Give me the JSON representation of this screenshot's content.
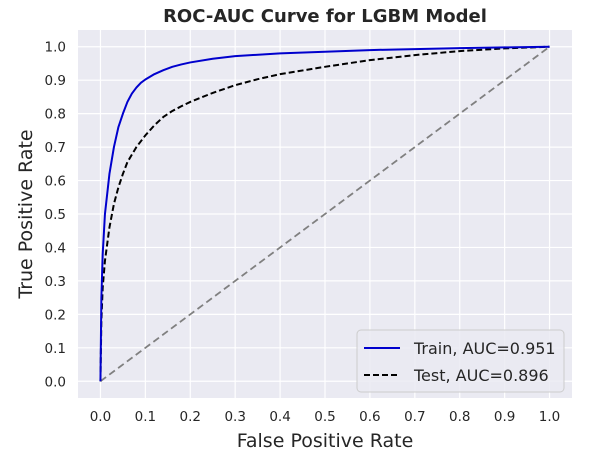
{
  "chart_data": {
    "type": "line",
    "title": "ROC-AUC Curve for LGBM Model",
    "xlabel": "False Positive Rate",
    "ylabel": "True Positive Rate",
    "xlim": [
      -0.05,
      1.05
    ],
    "ylim": [
      -0.05,
      1.05
    ],
    "xticks": [
      0.0,
      0.1,
      0.2,
      0.3,
      0.4,
      0.5,
      0.6,
      0.7,
      0.8,
      0.9,
      1.0
    ],
    "yticks": [
      0.0,
      0.1,
      0.2,
      0.3,
      0.4,
      0.5,
      0.6,
      0.7,
      0.8,
      0.9,
      1.0
    ],
    "grid": true,
    "legend_position": "bottom-right",
    "series": [
      {
        "name": "Train, AUC=0.951",
        "color": "#0000cd",
        "style": "solid",
        "x": [
          0.0,
          0.002,
          0.005,
          0.01,
          0.02,
          0.03,
          0.04,
          0.05,
          0.06,
          0.07,
          0.08,
          0.09,
          0.1,
          0.12,
          0.14,
          0.16,
          0.18,
          0.2,
          0.25,
          0.3,
          0.4,
          0.5,
          0.6,
          0.7,
          0.8,
          0.9,
          1.0
        ],
        "y": [
          0.0,
          0.25,
          0.38,
          0.5,
          0.62,
          0.7,
          0.76,
          0.8,
          0.835,
          0.86,
          0.878,
          0.892,
          0.902,
          0.918,
          0.93,
          0.94,
          0.947,
          0.953,
          0.964,
          0.972,
          0.98,
          0.985,
          0.99,
          0.993,
          0.996,
          0.998,
          1.0
        ]
      },
      {
        "name": "Test, AUC=0.896",
        "color": "#000000",
        "style": "dashed",
        "x": [
          0.0,
          0.002,
          0.005,
          0.01,
          0.02,
          0.03,
          0.04,
          0.05,
          0.06,
          0.08,
          0.1,
          0.12,
          0.14,
          0.16,
          0.18,
          0.2,
          0.25,
          0.3,
          0.35,
          0.4,
          0.5,
          0.6,
          0.7,
          0.8,
          0.9,
          1.0
        ],
        "y": [
          0.0,
          0.18,
          0.28,
          0.36,
          0.46,
          0.53,
          0.58,
          0.62,
          0.655,
          0.7,
          0.735,
          0.765,
          0.79,
          0.808,
          0.822,
          0.835,
          0.862,
          0.885,
          0.903,
          0.918,
          0.94,
          0.96,
          0.975,
          0.987,
          0.995,
          1.0
        ]
      },
      {
        "name": "",
        "color": "#808080",
        "style": "dashed",
        "x": [
          0.0,
          1.0
        ],
        "y": [
          0.0,
          1.0
        ]
      }
    ]
  }
}
